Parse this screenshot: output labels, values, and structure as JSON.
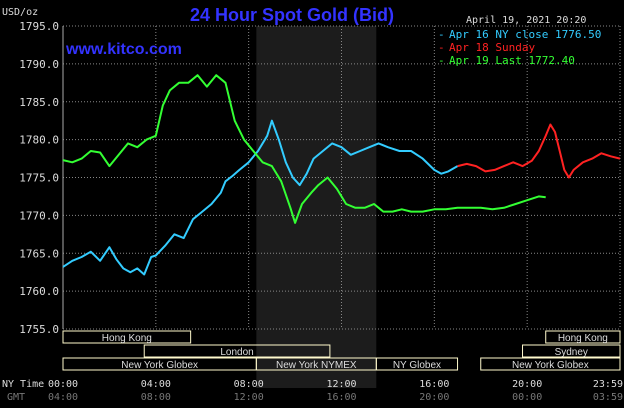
{
  "chart_data": {
    "type": "line",
    "title": "24 Hour Spot Gold (Bid)",
    "ylabel": "USD/oz",
    "ylim": [
      1755.0,
      1795.0
    ],
    "y_ticks": [
      "1795.0",
      "1790.0",
      "1785.0",
      "1780.0",
      "1775.0",
      "1770.0",
      "1765.0",
      "1760.0",
      "1755.0"
    ],
    "x_time_label": "NY Time",
    "x_time_ticks": [
      "00:00",
      "04:00",
      "08:00",
      "12:00",
      "16:00",
      "20:00",
      "23:59"
    ],
    "x_gmt_label": "GMT",
    "x_gmt_ticks": [
      "04:00",
      "08:00",
      "12:00",
      "16:00",
      "20:00",
      "00:00",
      "03:59"
    ],
    "xlim_hours": [
      0,
      24
    ],
    "shaded_region_hours": [
      8.33,
      13.5
    ],
    "grid": true,
    "legend_position": "top-right",
    "series": [
      {
        "name": "Apr 16 NY close 1776.50",
        "color": "#33ccff",
        "points": [
          [
            0.0,
            1763.2
          ],
          [
            0.4,
            1764.0
          ],
          [
            0.8,
            1764.5
          ],
          [
            1.2,
            1765.2
          ],
          [
            1.6,
            1764.0
          ],
          [
            2.0,
            1765.8
          ],
          [
            2.3,
            1764.2
          ],
          [
            2.6,
            1763.0
          ],
          [
            2.9,
            1762.5
          ],
          [
            3.2,
            1763.0
          ],
          [
            3.5,
            1762.2
          ],
          [
            3.8,
            1764.5
          ],
          [
            4.0,
            1764.7
          ],
          [
            4.4,
            1766.0
          ],
          [
            4.8,
            1767.5
          ],
          [
            5.2,
            1767.0
          ],
          [
            5.6,
            1769.5
          ],
          [
            6.0,
            1770.5
          ],
          [
            6.4,
            1771.5
          ],
          [
            6.8,
            1773.0
          ],
          [
            7.0,
            1774.5
          ],
          [
            7.3,
            1775.2
          ],
          [
            7.6,
            1776.0
          ],
          [
            8.0,
            1777.0
          ],
          [
            8.4,
            1778.5
          ],
          [
            8.8,
            1780.5
          ],
          [
            9.0,
            1782.5
          ],
          [
            9.3,
            1780.0
          ],
          [
            9.6,
            1777.0
          ],
          [
            9.9,
            1775.0
          ],
          [
            10.2,
            1774.0
          ],
          [
            10.5,
            1775.5
          ],
          [
            10.8,
            1777.5
          ],
          [
            11.2,
            1778.5
          ],
          [
            11.6,
            1779.5
          ],
          [
            12.0,
            1779.0
          ],
          [
            12.4,
            1778.0
          ],
          [
            12.8,
            1778.5
          ],
          [
            13.2,
            1779.0
          ],
          [
            13.6,
            1779.5
          ],
          [
            14.0,
            1779.0
          ],
          [
            14.5,
            1778.5
          ],
          [
            15.0,
            1778.5
          ],
          [
            15.5,
            1777.5
          ],
          [
            16.0,
            1776.0
          ],
          [
            16.3,
            1775.5
          ],
          [
            16.6,
            1775.8
          ],
          [
            17.0,
            1776.5
          ]
        ]
      },
      {
        "name": "Apr 18 Sunday",
        "color": "#ff2222",
        "points": [
          [
            17.0,
            1776.5
          ],
          [
            17.4,
            1776.8
          ],
          [
            17.8,
            1776.5
          ],
          [
            18.2,
            1775.8
          ],
          [
            18.6,
            1776.0
          ],
          [
            19.0,
            1776.5
          ],
          [
            19.4,
            1777.0
          ],
          [
            19.8,
            1776.5
          ],
          [
            20.2,
            1777.2
          ],
          [
            20.5,
            1778.5
          ],
          [
            20.8,
            1780.5
          ],
          [
            21.0,
            1782.0
          ],
          [
            21.2,
            1781.0
          ],
          [
            21.4,
            1778.5
          ],
          [
            21.6,
            1776.0
          ],
          [
            21.8,
            1775.0
          ],
          [
            22.0,
            1776.0
          ],
          [
            22.4,
            1777.0
          ],
          [
            22.8,
            1777.5
          ],
          [
            23.2,
            1778.2
          ],
          [
            23.6,
            1777.8
          ],
          [
            24.0,
            1777.5
          ]
        ]
      },
      {
        "name": "Apr 19 Last 1772.40",
        "color": "#33ff33",
        "points": [
          [
            0.0,
            1777.3
          ],
          [
            0.4,
            1777.0
          ],
          [
            0.8,
            1777.5
          ],
          [
            1.2,
            1778.5
          ],
          [
            1.6,
            1778.3
          ],
          [
            2.0,
            1776.5
          ],
          [
            2.4,
            1778.0
          ],
          [
            2.8,
            1779.5
          ],
          [
            3.2,
            1779.0
          ],
          [
            3.6,
            1780.0
          ],
          [
            4.0,
            1780.5
          ],
          [
            4.3,
            1784.5
          ],
          [
            4.6,
            1786.5
          ],
          [
            5.0,
            1787.5
          ],
          [
            5.4,
            1787.5
          ],
          [
            5.8,
            1788.5
          ],
          [
            6.2,
            1787.0
          ],
          [
            6.6,
            1788.5
          ],
          [
            7.0,
            1787.5
          ],
          [
            7.4,
            1782.5
          ],
          [
            7.8,
            1780.0
          ],
          [
            8.2,
            1778.5
          ],
          [
            8.6,
            1777.0
          ],
          [
            9.0,
            1776.5
          ],
          [
            9.4,
            1774.5
          ],
          [
            9.8,
            1771.0
          ],
          [
            10.0,
            1769.0
          ],
          [
            10.3,
            1771.5
          ],
          [
            10.7,
            1773.0
          ],
          [
            11.0,
            1774.0
          ],
          [
            11.4,
            1775.0
          ],
          [
            11.8,
            1773.5
          ],
          [
            12.2,
            1771.5
          ],
          [
            12.6,
            1771.0
          ],
          [
            13.0,
            1771.0
          ],
          [
            13.4,
            1771.5
          ],
          [
            13.8,
            1770.5
          ],
          [
            14.2,
            1770.5
          ],
          [
            14.6,
            1770.8
          ],
          [
            15.0,
            1770.5
          ],
          [
            15.5,
            1770.5
          ],
          [
            16.0,
            1770.8
          ],
          [
            16.5,
            1770.8
          ],
          [
            17.0,
            1771.0
          ],
          [
            17.5,
            1771.0
          ],
          [
            18.0,
            1771.0
          ],
          [
            18.5,
            1770.8
          ],
          [
            19.0,
            1771.0
          ],
          [
            19.5,
            1771.5
          ],
          [
            20.0,
            1772.0
          ],
          [
            20.5,
            1772.5
          ],
          [
            20.8,
            1772.4
          ]
        ]
      }
    ],
    "sessions": [
      {
        "label": "Hong Kong",
        "start": 0.0,
        "end": 5.5,
        "row": 0
      },
      {
        "label": "Hong Kong",
        "start": 20.8,
        "end": 24.0,
        "row": 0
      },
      {
        "label": "London",
        "start": 3.5,
        "end": 11.5,
        "row": 1
      },
      {
        "label": "Sydney",
        "start": 19.8,
        "end": 24.0,
        "row": 1
      },
      {
        "label": "New York Globex",
        "start": 0.0,
        "end": 8.33,
        "row": 2
      },
      {
        "label": "New York NYMEX",
        "start": 8.33,
        "end": 13.5,
        "row": 2
      },
      {
        "label": "NY Globex",
        "start": 13.5,
        "end": 17.0,
        "row": 2
      },
      {
        "label": "New York Globex",
        "start": 18.0,
        "end": 24.0,
        "row": 2
      }
    ]
  },
  "header": {
    "title": "24 Hour Spot Gold (Bid)",
    "brand": "www.kitco.com",
    "timestamp": "April 19, 2021 20:20",
    "y_unit": "USD/oz"
  },
  "colors": {
    "title": "#3333ff",
    "background": "#000000",
    "grid": "#888888",
    "shade": "#1c1c1c",
    "session_box": "#fffacd"
  }
}
